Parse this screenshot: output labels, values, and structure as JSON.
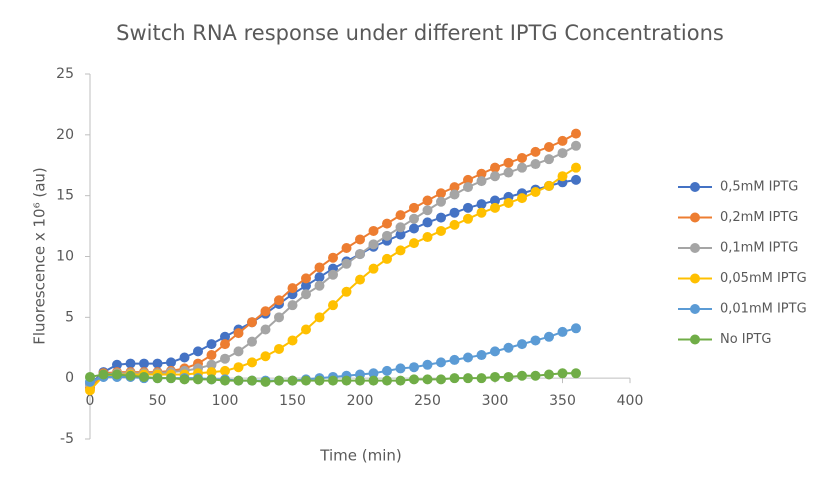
{
  "chart_data": {
    "type": "line",
    "title": "Switch RNA response under different IPTG Concentrations",
    "x_label": "Time (min)",
    "y_label": "Fluorescence x 10⁶ (au)",
    "x": [
      0,
      10,
      20,
      30,
      40,
      50,
      60,
      70,
      80,
      90,
      100,
      110,
      120,
      130,
      140,
      150,
      160,
      170,
      180,
      190,
      200,
      210,
      220,
      230,
      240,
      250,
      260,
      270,
      280,
      290,
      300,
      310,
      320,
      330,
      340,
      350,
      360
    ],
    "xlim": [
      0,
      400
    ],
    "xticks": [
      0,
      50,
      100,
      150,
      200,
      250,
      300,
      350,
      400
    ],
    "ylim": [
      -5,
      25
    ],
    "yticks": [
      -5,
      0,
      5,
      10,
      15,
      20,
      25
    ],
    "grid": false,
    "legend": "right",
    "series": [
      {
        "name": "0,5mM IPTG",
        "color": "#4472c4",
        "values": [
          -0.5,
          0.5,
          1.1,
          1.2,
          1.2,
          1.2,
          1.3,
          1.7,
          2.2,
          2.8,
          3.4,
          4.0,
          4.6,
          5.3,
          6.1,
          6.9,
          7.6,
          8.3,
          9.0,
          9.6,
          10.2,
          10.8,
          11.3,
          11.8,
          12.3,
          12.8,
          13.2,
          13.6,
          14.0,
          14.3,
          14.6,
          14.9,
          15.2,
          15.5,
          15.8,
          16.1,
          16.3
        ]
      },
      {
        "name": "0,2mM IPTG",
        "color": "#ed7d31",
        "values": [
          -0.8,
          0.4,
          0.5,
          0.5,
          0.5,
          0.5,
          0.6,
          0.8,
          1.2,
          1.9,
          2.8,
          3.7,
          4.6,
          5.5,
          6.4,
          7.4,
          8.2,
          9.1,
          9.9,
          10.7,
          11.4,
          12.1,
          12.7,
          13.4,
          14.0,
          14.6,
          15.2,
          15.7,
          16.3,
          16.8,
          17.3,
          17.7,
          18.1,
          18.6,
          19.0,
          19.5,
          20.1
        ]
      },
      {
        "name": "0,1mM IPTG",
        "color": "#a5a5a5",
        "values": [
          -0.5,
          0.3,
          0.4,
          0.4,
          0.4,
          0.4,
          0.5,
          0.6,
          0.8,
          1.1,
          1.6,
          2.2,
          3.0,
          4.0,
          5.0,
          6.0,
          6.9,
          7.6,
          8.5,
          9.4,
          10.2,
          11.0,
          11.7,
          12.4,
          13.1,
          13.8,
          14.5,
          15.1,
          15.7,
          16.2,
          16.6,
          16.9,
          17.3,
          17.6,
          18.0,
          18.5,
          19.1
        ]
      },
      {
        "name": "0,05mM IPTG",
        "color": "#ffc000",
        "values": [
          -1.0,
          0.2,
          0.3,
          0.3,
          0.3,
          0.3,
          0.3,
          0.3,
          0.4,
          0.5,
          0.6,
          0.9,
          1.3,
          1.8,
          2.4,
          3.1,
          4.0,
          5.0,
          6.0,
          7.1,
          8.1,
          9.0,
          9.8,
          10.5,
          11.1,
          11.6,
          12.1,
          12.6,
          13.1,
          13.6,
          14.0,
          14.4,
          14.8,
          15.3,
          15.8,
          16.6,
          17.3
        ]
      },
      {
        "name": "0,01mM IPTG",
        "color": "#5b9bd5",
        "values": [
          -0.3,
          0.1,
          0.1,
          0.1,
          0,
          0,
          0,
          0,
          0,
          -0.1,
          -0.1,
          -0.2,
          -0.2,
          -0.2,
          -0.2,
          -0.2,
          -0.1,
          0,
          0.1,
          0.2,
          0.3,
          0.4,
          0.6,
          0.8,
          0.9,
          1.1,
          1.3,
          1.5,
          1.7,
          1.9,
          2.2,
          2.5,
          2.8,
          3.1,
          3.4,
          3.8,
          4.1
        ]
      },
      {
        "name": "No IPTG",
        "color": "#70ad47",
        "values": [
          0.1,
          0.3,
          0.3,
          0.2,
          0.1,
          0,
          0,
          -0.1,
          -0.1,
          -0.1,
          -0.2,
          -0.2,
          -0.2,
          -0.3,
          -0.2,
          -0.2,
          -0.2,
          -0.2,
          -0.2,
          -0.2,
          -0.2,
          -0.2,
          -0.2,
          -0.2,
          -0.1,
          -0.1,
          -0.1,
          0,
          0,
          0,
          0.1,
          0.1,
          0.2,
          0.2,
          0.3,
          0.4,
          0.4
        ]
      }
    ]
  }
}
